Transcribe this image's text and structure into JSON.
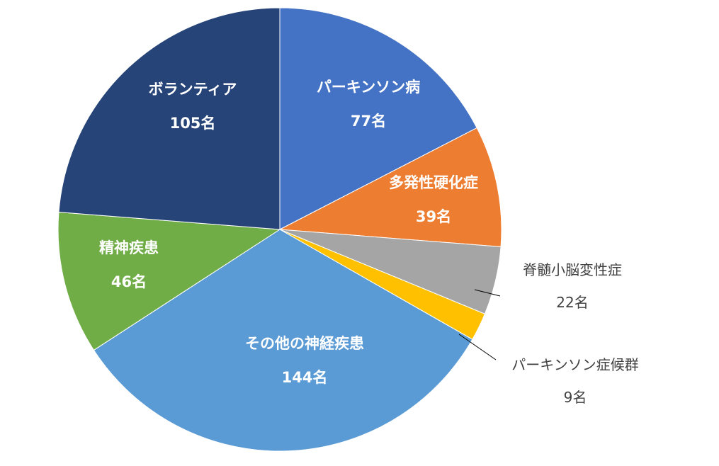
{
  "chart_data": {
    "type": "pie",
    "title": "",
    "unit": "名",
    "slices": [
      {
        "label": "パーキンソン病",
        "value": 77,
        "value_label": "77名",
        "color": "#4472C4"
      },
      {
        "label": "多発性硬化症",
        "value": 39,
        "value_label": "39名",
        "color": "#ED7D31"
      },
      {
        "label": "脊髄小脳変性症",
        "value": 22,
        "value_label": "22名",
        "color": "#A5A5A5"
      },
      {
        "label": "パーキンソン症候群",
        "value": 9,
        "value_label": "9名",
        "color": "#FFC000"
      },
      {
        "label": "その他の神経疾患",
        "value": 144,
        "value_label": "144名",
        "color": "#5B9BD5"
      },
      {
        "label": "精神疾患",
        "value": 46,
        "value_label": "46名",
        "color": "#70AD47"
      },
      {
        "label": "ボランティア",
        "value": 105,
        "value_label": "105名",
        "color": "#264478"
      }
    ],
    "start_angle": "12 o'clock",
    "direction": "clockwise",
    "legend": "none",
    "labels": "data labels (category name + value)"
  }
}
